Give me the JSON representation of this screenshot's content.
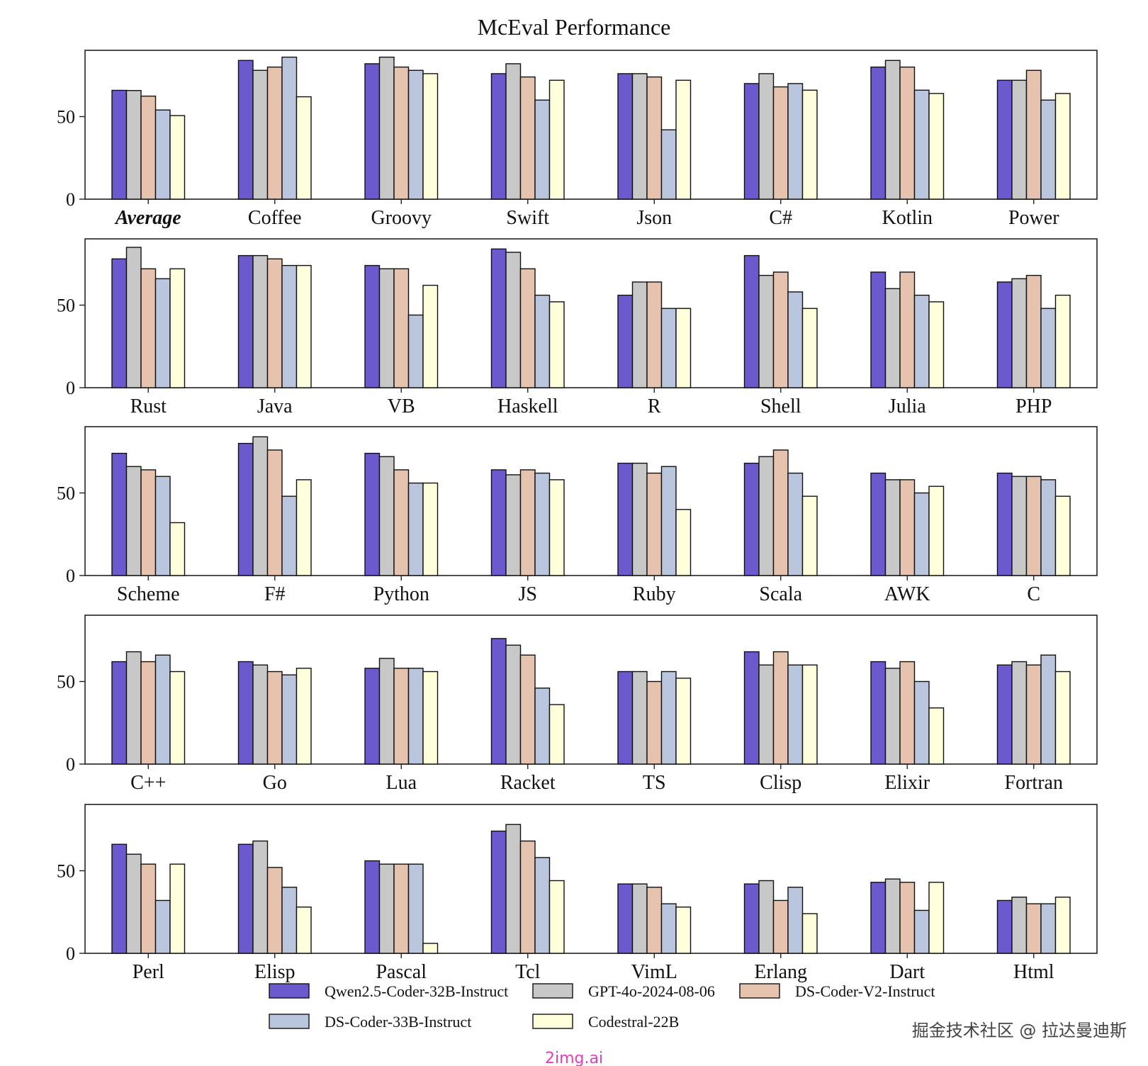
{
  "chart_data": {
    "type": "bar",
    "title": "McEval Performance",
    "ylim": [
      0,
      90
    ],
    "yticks": [
      0,
      50
    ],
    "grid": false,
    "legend_position": "bottom",
    "series": [
      {
        "name": "Qwen2.5-Coder-32B-Instruct",
        "color": "#6a5acd"
      },
      {
        "name": "GPT-4o-2024-08-06",
        "color": "#c8c8c8"
      },
      {
        "name": "DS-Coder-V2-Instruct",
        "color": "#e6c3ae"
      },
      {
        "name": "DS-Coder-33B-Instruct",
        "color": "#b9c6dd"
      },
      {
        "name": "Codestral-22B",
        "color": "#ffffdc"
      }
    ],
    "panels": [
      {
        "categories": [
          "Average",
          "Coffee",
          "Groovy",
          "Swift",
          "Json",
          "C#",
          "Kotlin",
          "Power"
        ],
        "values": [
          [
            65.9,
            65.8,
            62.4,
            54.0,
            50.6
          ],
          [
            84,
            78,
            80,
            86,
            62
          ],
          [
            82,
            86,
            80,
            78,
            76
          ],
          [
            76,
            82,
            74,
            60,
            72
          ],
          [
            76,
            76,
            74,
            42,
            72
          ],
          [
            70,
            76,
            68,
            70,
            66
          ],
          [
            80,
            84,
            80,
            66,
            64
          ],
          [
            72,
            72,
            78,
            60,
            64
          ]
        ]
      },
      {
        "categories": [
          "Rust",
          "Java",
          "VB",
          "Haskell",
          "R",
          "Shell",
          "Julia",
          "PHP"
        ],
        "values": [
          [
            78,
            85,
            72,
            66,
            72
          ],
          [
            80,
            80,
            78,
            74,
            74
          ],
          [
            74,
            72,
            72,
            44,
            62
          ],
          [
            84,
            82,
            72,
            56,
            52
          ],
          [
            56,
            64,
            64,
            48,
            48
          ],
          [
            80,
            68,
            70,
            58,
            48
          ],
          [
            70,
            60,
            70,
            56,
            52
          ],
          [
            64,
            66,
            68,
            48,
            56
          ]
        ]
      },
      {
        "categories": [
          "Scheme",
          "F#",
          "Python",
          "JS",
          "Ruby",
          "Scala",
          "AWK",
          "C"
        ],
        "values": [
          [
            74,
            66,
            64,
            60,
            32
          ],
          [
            80,
            84,
            76,
            48,
            58
          ],
          [
            74,
            72,
            64,
            56,
            56
          ],
          [
            64,
            61,
            64,
            62,
            58
          ],
          [
            68,
            68,
            62,
            66,
            40
          ],
          [
            68,
            72,
            76,
            62,
            48
          ],
          [
            62,
            58,
            58,
            50,
            54
          ],
          [
            62,
            60,
            60,
            58,
            48
          ]
        ]
      },
      {
        "categories": [
          "C++",
          "Go",
          "Lua",
          "Racket",
          "TS",
          "Clisp",
          "Elixir",
          "Fortran"
        ],
        "values": [
          [
            62,
            68,
            62,
            66,
            56
          ],
          [
            62,
            60,
            56,
            54,
            58
          ],
          [
            58,
            64,
            58,
            58,
            56
          ],
          [
            76,
            72,
            66,
            46,
            36
          ],
          [
            56,
            56,
            50,
            56,
            52
          ],
          [
            68,
            60,
            68,
            60,
            60
          ],
          [
            62,
            58,
            62,
            50,
            34
          ],
          [
            60,
            62,
            60,
            66,
            56
          ]
        ]
      },
      {
        "categories": [
          "Perl",
          "Elisp",
          "Pascal",
          "Tcl",
          "VimL",
          "Erlang",
          "Dart",
          "Html"
        ],
        "values": [
          [
            66,
            60,
            54,
            32,
            54
          ],
          [
            66,
            68,
            52,
            40,
            28
          ],
          [
            56,
            54,
            54,
            54,
            6
          ],
          [
            74,
            78,
            68,
            58,
            44
          ],
          [
            42,
            42,
            40,
            30,
            28
          ],
          [
            42,
            44,
            32,
            40,
            24
          ],
          [
            43,
            45,
            43,
            26,
            43
          ],
          [
            32,
            34,
            30,
            30,
            34
          ]
        ]
      }
    ]
  },
  "watermark": "掘金技术社区 @ 拉达曼迪斯",
  "site_mark": "2img.ai"
}
